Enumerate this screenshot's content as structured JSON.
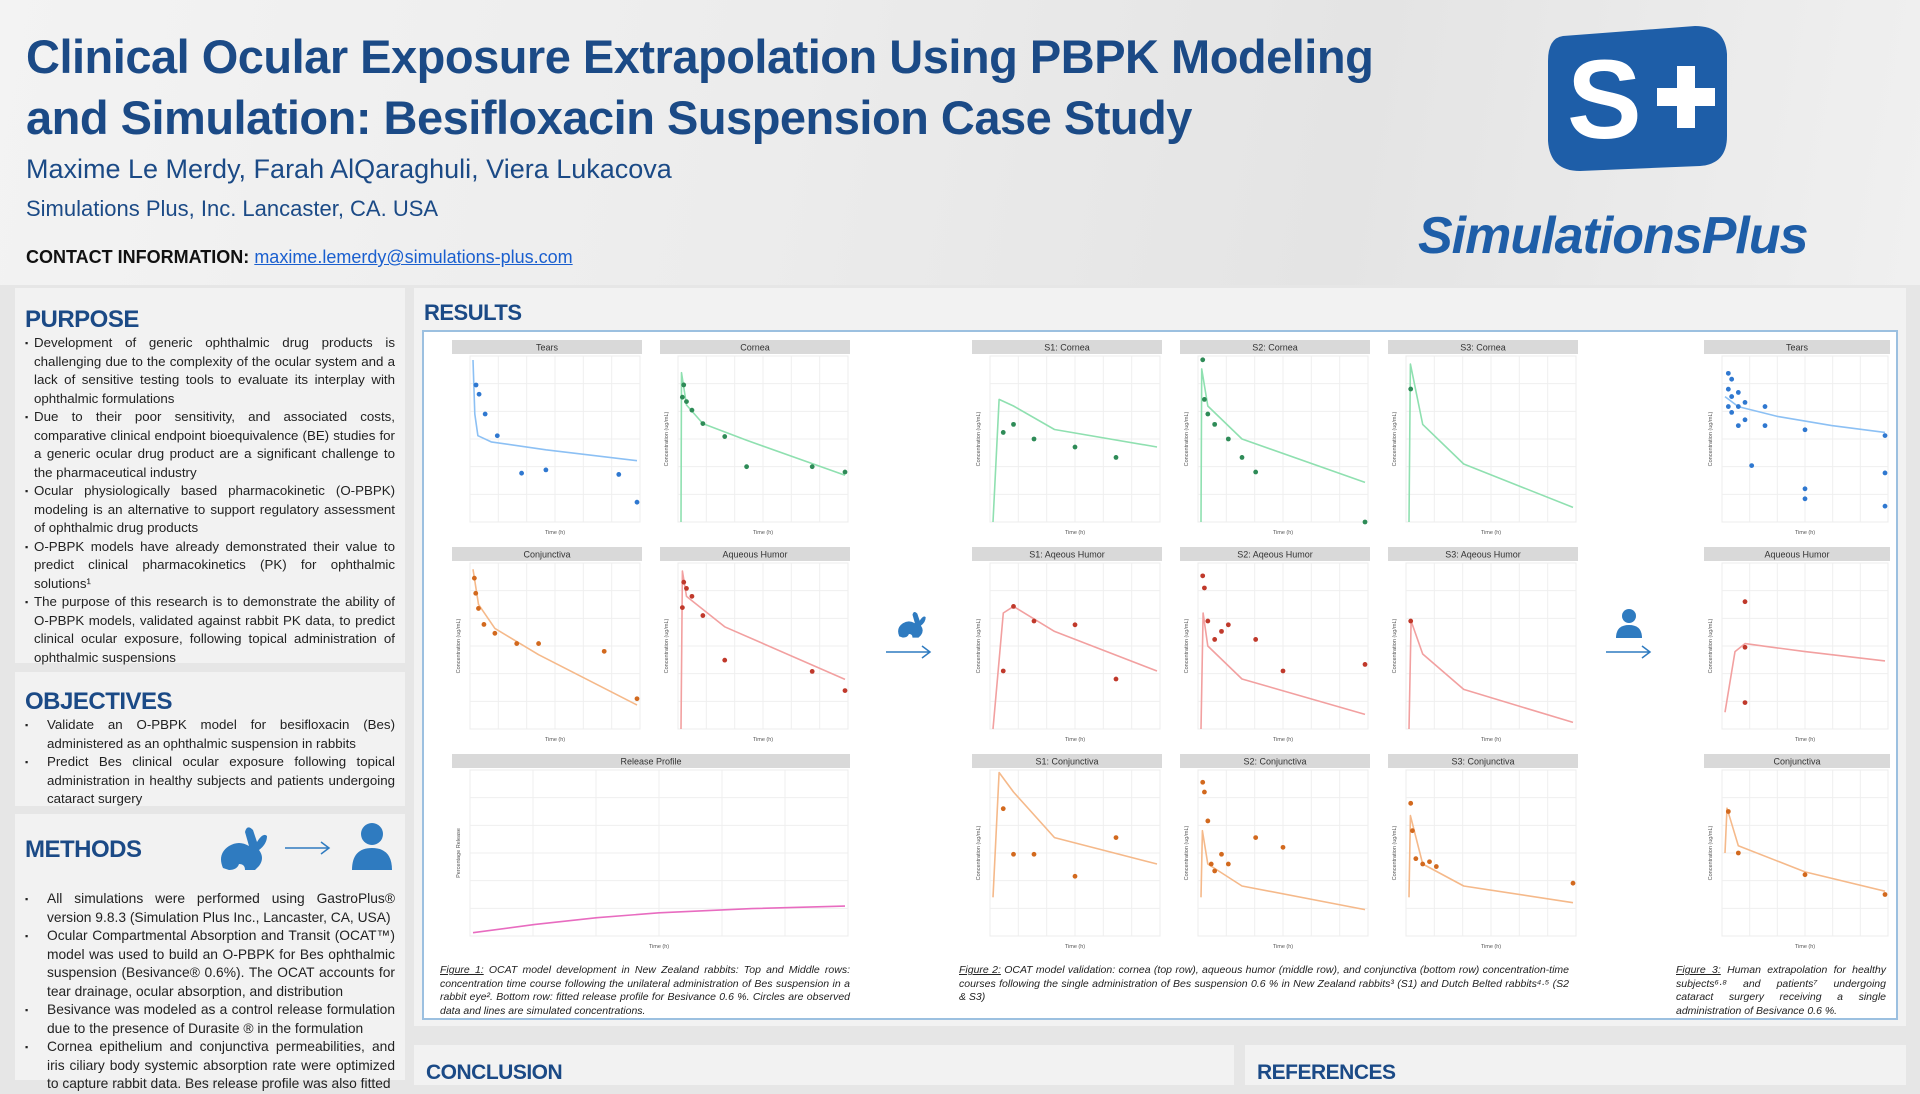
{
  "header": {
    "title": "Clinical Ocular Exposure Extrapolation Using PBPK Modeling and Simulation: Besifloxacin Suspension Case Study",
    "authors": "Maxime Le Merdy, Farah AlQaraghuli, Viera Lukacova",
    "affiliation": "Simulations Plus, Inc. Lancaster, CA. USA",
    "contact_label": "CONTACT INFORMATION:",
    "contact_email": "maxime.lemerdy@simulations-plus.com",
    "logo_text": "SimulationsPlus",
    "logo_mark": "S+"
  },
  "colors": {
    "brand_blue": "#1b4a86",
    "logo_blue": "#1e5ea8",
    "link": "#1a5fcf",
    "results_border": "#9cc0e0"
  },
  "purpose": {
    "heading": "PURPOSE",
    "items": [
      "Development of generic ophthalmic drug products is challenging due to the complexity of the ocular system and a lack of sensitive testing tools to evaluate its interplay with ophthalmic formulations",
      "Due to their poor sensitivity, and associated costs, comparative clinical endpoint bioequivalence (BE) studies for a generic ocular drug product are a significant challenge to the pharmaceutical industry",
      "Ocular physiologically based pharmacokinetic (O-PBPK) modeling is an alternative to support regulatory assessment of ophthalmic drug products",
      "O-PBPK models have already demonstrated their value to predict clinical pharmacokinetics (PK) for ophthalmic solutions¹",
      "The purpose of this research is to demonstrate the ability of O-PBPK models, validated against rabbit PK data, to predict clinical ocular exposure, following topical administration of ophthalmic suspensions"
    ]
  },
  "objectives": {
    "heading": "OBJECTIVES",
    "items": [
      "Validate an O-PBPK model for besifloxacin (Bes) administered as an ophthalmic suspension in rabbits",
      "Predict Bes clinical ocular exposure following topical administration in healthy subjects and patients undergoing cataract surgery"
    ]
  },
  "methods": {
    "heading": "METHODS",
    "icons": [
      "rabbit-icon",
      "arrow-right-icon",
      "person-icon"
    ],
    "items": [
      "All simulations were performed using GastroPlus® version 9.8.3 (Simulation Plus Inc., Lancaster, CA, USA)",
      "Ocular Compartmental Absorption and Transit (OCAT™) model was used to build an O-PBPK for Bes ophthalmic suspension (Besivance® 0.6%). The OCAT accounts for tear drainage, ocular absorption, and distribution",
      "Besivance was modeled as a control release formulation due to the presence of Durasite ® in the formulation",
      "Cornea epithelium and conjunctiva permeabilities, and iris ciliary body systemic absorption rate were optimized to capture rabbit data. Bes release profile was also fitted"
    ]
  },
  "results": {
    "heading": "RESULTS",
    "captions": {
      "fig1_label": "Figure 1:",
      "fig1_text": " OCAT model development in New Zealand rabbits: Top and Middle rows: concentration time course following the unilateral administration of Bes suspension in a rabbit eye². Bottom row: fitted release profile for Besivance 0.6 %. Circles are observed data and lines are simulated concentrations.",
      "fig2_label": "Figure 2:",
      "fig2_text": " OCAT model validation: cornea (top row), aqueous humor (middle row), and conjunctiva (bottom row) concentration-time courses following the single administration of Bes suspension 0.6 % in New Zealand rabbits³ (S1) and Dutch Belted rabbits⁴·⁵ (S2 & S3)",
      "fig3_label": "Figure 3:",
      "fig3_text": " Human extrapolation for healthy subjects⁶·⁸ and patients⁷ undergoing cataract surgery receiving a single administration of Besivance 0.6 %."
    }
  },
  "chart_data": [
    {
      "id": "f1-tears",
      "type": "line",
      "title": "Tears",
      "xlabel": "Time (h)",
      "ylabel": "",
      "yscale": "log",
      "xlim": [
        0,
        27
      ],
      "ylim": [
        1,
        10000
      ],
      "color": "#2f78d0",
      "line": "#8cc0f4",
      "observed": [
        [
          0.5,
          2000
        ],
        [
          1,
          1200
        ],
        [
          2,
          400
        ],
        [
          4,
          120
        ],
        [
          8,
          15
        ],
        [
          12,
          18
        ],
        [
          24,
          14
        ],
        [
          27,
          3
        ]
      ],
      "simulated": [
        [
          0,
          8000
        ],
        [
          0.3,
          400
        ],
        [
          0.8,
          120
        ],
        [
          3,
          85
        ],
        [
          12,
          55
        ],
        [
          27,
          30
        ]
      ]
    },
    {
      "id": "f1-cornea",
      "type": "line",
      "title": "Cornea",
      "xlabel": "Time (h)",
      "ylabel": "Concentration (ug/mL)",
      "yscale": "log",
      "xlim": [
        0,
        30
      ],
      "ylim": [
        0.01,
        10
      ],
      "color": "#2e8b57",
      "line": "#8fe0b0",
      "observed": [
        [
          0.5,
          3
        ],
        [
          0.25,
          1.8
        ],
        [
          1,
          1.5
        ],
        [
          2,
          1.05
        ],
        [
          4,
          0.6
        ],
        [
          8,
          0.35
        ],
        [
          12,
          0.1
        ],
        [
          24,
          0.1
        ],
        [
          30,
          0.08
        ]
      ],
      "simulated": [
        [
          0,
          0.01
        ],
        [
          0.1,
          5
        ],
        [
          1,
          1.3
        ],
        [
          4,
          0.6
        ],
        [
          12,
          0.3
        ],
        [
          30,
          0.07
        ]
      ]
    },
    {
      "id": "f1-conjunctiva",
      "type": "line",
      "title": "Conjunctiva",
      "xlabel": "Time (h)",
      "ylabel": "Concentration (ug/mL)",
      "yscale": "log",
      "xlim": [
        0,
        30
      ],
      "ylim": [
        0.01,
        20
      ],
      "color": "#d2691e",
      "line": "#f5b98a",
      "observed": [
        [
          0.25,
          10
        ],
        [
          0.5,
          5
        ],
        [
          1,
          2.5
        ],
        [
          2,
          1.2
        ],
        [
          4,
          0.8
        ],
        [
          8,
          0.5
        ],
        [
          12,
          0.5
        ],
        [
          24,
          0.35
        ],
        [
          30,
          0.04
        ]
      ],
      "simulated": [
        [
          0,
          15
        ],
        [
          1,
          3
        ],
        [
          4,
          1
        ],
        [
          12,
          0.3
        ],
        [
          30,
          0.03
        ]
      ]
    },
    {
      "id": "f1-aqueous",
      "type": "line",
      "title": "Aqueous Humor",
      "xlabel": "Time (h)",
      "ylabel": "Concentration (ug/mL)",
      "yscale": "log",
      "xlim": [
        0,
        30
      ],
      "ylim": [
        0.0005,
        0.2
      ],
      "color": "#c0392b",
      "line": "#f2a0a0",
      "observed": [
        [
          0.25,
          0.04
        ],
        [
          0.5,
          0.1
        ],
        [
          1,
          0.08
        ],
        [
          2,
          0.06
        ],
        [
          4,
          0.03
        ],
        [
          8,
          0.006
        ],
        [
          24,
          0.004
        ],
        [
          30,
          0.002
        ]
      ],
      "simulated": [
        [
          0,
          0.0005
        ],
        [
          0.25,
          0.15
        ],
        [
          1,
          0.06
        ],
        [
          8,
          0.02
        ],
        [
          30,
          0.003
        ]
      ]
    },
    {
      "id": "f1-release",
      "type": "line",
      "title": "Release Profile",
      "xlabel": "Time (h)",
      "ylabel": "Percentage Release",
      "yscale": "linear",
      "xlim": [
        0,
        24
      ],
      "ylim": [
        0,
        100
      ],
      "color": "#e040a0",
      "line": "#e86cc0",
      "observed": [],
      "simulated": [
        [
          0,
          2
        ],
        [
          4,
          7
        ],
        [
          8,
          11
        ],
        [
          12,
          14
        ],
        [
          18,
          16.5
        ],
        [
          24,
          18
        ]
      ]
    },
    {
      "id": "f2-s1-cornea",
      "type": "line",
      "title": "S1: Cornea",
      "xlabel": "Time (h)",
      "ylabel": "Concentration (ug/mL)",
      "yscale": "log",
      "xlim": [
        0,
        8
      ],
      "ylim": [
        0.1,
        10
      ],
      "color": "#2e8b57",
      "line": "#8fe0b0",
      "observed": [
        [
          0.5,
          1.2
        ],
        [
          1,
          1.5
        ],
        [
          2,
          1
        ],
        [
          4,
          0.8
        ],
        [
          6,
          0.6
        ]
      ],
      "simulated": [
        [
          0,
          0.1
        ],
        [
          0.3,
          3
        ],
        [
          1,
          2.5
        ],
        [
          3,
          1.3
        ],
        [
          8,
          0.8
        ]
      ]
    },
    {
      "id": "f2-s2-cornea",
      "type": "line",
      "title": "S2: Cornea",
      "xlabel": "Time (h)",
      "ylabel": "Concentration (ug/mL)",
      "yscale": "log",
      "xlim": [
        0,
        24
      ],
      "ylim": [
        0.1,
        10
      ],
      "color": "#2e8b57",
      "line": "#8fe0b0",
      "observed": [
        [
          0.25,
          9
        ],
        [
          0.5,
          3
        ],
        [
          1,
          2
        ],
        [
          2,
          1.5
        ],
        [
          4,
          1
        ],
        [
          6,
          0.6
        ],
        [
          8,
          0.4
        ],
        [
          24,
          0.1
        ]
      ],
      "simulated": [
        [
          0,
          0.1
        ],
        [
          0.1,
          7
        ],
        [
          1,
          2.5
        ],
        [
          6,
          1
        ],
        [
          24,
          0.3
        ]
      ]
    },
    {
      "id": "f2-s3-cornea",
      "type": "line",
      "title": "S3: Cornea",
      "xlabel": "Time (h)",
      "ylabel": "Concentration (ug/mL)",
      "yscale": "log",
      "xlim": [
        0,
        24
      ],
      "ylim": [
        0.1,
        10
      ],
      "color": "#2e8b57",
      "line": "#8fe0b0",
      "observed": [
        [
          0.25,
          4
        ]
      ],
      "simulated": [
        [
          0,
          0.1
        ],
        [
          0.2,
          8
        ],
        [
          2,
          1.5
        ],
        [
          8,
          0.5
        ],
        [
          24,
          0.15
        ]
      ]
    },
    {
      "id": "f2-s1-aqueous",
      "type": "line",
      "title": "S1: Aqeous Humor",
      "xlabel": "Time (h)",
      "ylabel": "Concentration (ug/mL)",
      "yscale": "log",
      "xlim": [
        0,
        8
      ],
      "ylim": [
        0.01,
        1
      ],
      "color": "#c0392b",
      "line": "#f2a0a0",
      "observed": [
        [
          0.5,
          0.05
        ],
        [
          1,
          0.3
        ],
        [
          2,
          0.2
        ],
        [
          4,
          0.18
        ],
        [
          6,
          0.04
        ]
      ],
      "simulated": [
        [
          0,
          0.01
        ],
        [
          0.5,
          0.25
        ],
        [
          1,
          0.3
        ],
        [
          3,
          0.15
        ],
        [
          8,
          0.05
        ]
      ]
    },
    {
      "id": "f2-s2-aqueous",
      "type": "line",
      "title": "S2: Aqeous Humor",
      "xlabel": "Time (h)",
      "ylabel": "Concentration (ug/mL)",
      "yscale": "log",
      "xlim": [
        0,
        24
      ],
      "ylim": [
        0.01,
        1
      ],
      "color": "#c0392b",
      "line": "#f2a0a0",
      "observed": [
        [
          0.25,
          0.7
        ],
        [
          0.5,
          0.5
        ],
        [
          1,
          0.2
        ],
        [
          2,
          0.12
        ],
        [
          3,
          0.15
        ],
        [
          4,
          0.18
        ],
        [
          8,
          0.12
        ],
        [
          12,
          0.05
        ],
        [
          24,
          0.06
        ]
      ],
      "simulated": [
        [
          0,
          0.01
        ],
        [
          0.3,
          0.25
        ],
        [
          1,
          0.1
        ],
        [
          6,
          0.04
        ],
        [
          24,
          0.015
        ]
      ]
    },
    {
      "id": "f2-s3-aqueous",
      "type": "line",
      "title": "S3: Aqeous Humor",
      "xlabel": "Time (h)",
      "ylabel": "Concentration (ug/mL)",
      "yscale": "log",
      "xlim": [
        0,
        24
      ],
      "ylim": [
        0.01,
        1
      ],
      "color": "#c0392b",
      "line": "#f2a0a0",
      "observed": [
        [
          0.25,
          0.2
        ]
      ],
      "simulated": [
        [
          0,
          0.01
        ],
        [
          0.3,
          0.2
        ],
        [
          2,
          0.08
        ],
        [
          8,
          0.03
        ],
        [
          24,
          0.012
        ]
      ]
    },
    {
      "id": "f2-s1-conjunctiva",
      "type": "line",
      "title": "S1: Conjunctiva",
      "xlabel": "Time (h)",
      "ylabel": "Concentration (ug/mL)",
      "yscale": "log",
      "xlim": [
        0,
        8
      ],
      "ylim": [
        0.1,
        100
      ],
      "color": "#d2691e",
      "line": "#f5b98a",
      "observed": [
        [
          0.5,
          20
        ],
        [
          1,
          3
        ],
        [
          2,
          3
        ],
        [
          4,
          1.2
        ],
        [
          6,
          6
        ]
      ],
      "simulated": [
        [
          0,
          0.5
        ],
        [
          0.3,
          90
        ],
        [
          1,
          40
        ],
        [
          3,
          6
        ],
        [
          8,
          2
        ]
      ]
    },
    {
      "id": "f2-s2-conjunctiva",
      "type": "line",
      "title": "S2: Conjunctiva",
      "xlabel": "Time (h)",
      "ylabel": "Concentration (ug/mL)",
      "yscale": "log",
      "xlim": [
        0,
        24
      ],
      "ylim": [
        0.1,
        100
      ],
      "color": "#d2691e",
      "line": "#f5b98a",
      "observed": [
        [
          0.25,
          60
        ],
        [
          0.5,
          40
        ],
        [
          1,
          12
        ],
        [
          1.5,
          2
        ],
        [
          2,
          1.5
        ],
        [
          3,
          3
        ],
        [
          4,
          2
        ],
        [
          8,
          6
        ],
        [
          12,
          4
        ]
      ],
      "simulated": [
        [
          0,
          0.5
        ],
        [
          0.2,
          8
        ],
        [
          1,
          2
        ],
        [
          6,
          0.8
        ],
        [
          24,
          0.3
        ]
      ]
    },
    {
      "id": "f2-s3-conjunctiva",
      "type": "line",
      "title": "S3: Conjunctiva",
      "xlabel": "Time (h)",
      "ylabel": "Concentration (ug/mL)",
      "yscale": "log",
      "xlim": [
        0,
        24
      ],
      "ylim": [
        0.1,
        100
      ],
      "color": "#d2691e",
      "line": "#f5b98a",
      "observed": [
        [
          0.25,
          25
        ],
        [
          0.5,
          8
        ],
        [
          1,
          2.5
        ],
        [
          2,
          2
        ],
        [
          3,
          2.2
        ],
        [
          4,
          1.8
        ],
        [
          24,
          0.9
        ]
      ],
      "simulated": [
        [
          0,
          0.5
        ],
        [
          0.2,
          15
        ],
        [
          2,
          2
        ],
        [
          8,
          0.8
        ],
        [
          24,
          0.4
        ]
      ]
    },
    {
      "id": "f3-tears",
      "type": "line",
      "title": "Tears",
      "xlabel": "Time (h)",
      "ylabel": "Concentration (ug/mL)",
      "yscale": "log",
      "xlim": [
        0,
        24
      ],
      "ylim": [
        0.01,
        1000
      ],
      "color": "#2f78d0",
      "line": "#8cc0f4",
      "observed": [
        [
          0.5,
          300
        ],
        [
          0.5,
          100
        ],
        [
          0.5,
          30
        ],
        [
          1,
          200
        ],
        [
          1,
          60
        ],
        [
          1,
          20
        ],
        [
          2,
          80
        ],
        [
          2,
          30
        ],
        [
          2,
          8
        ],
        [
          3,
          40
        ],
        [
          3,
          12
        ],
        [
          4,
          0.5
        ],
        [
          6,
          30
        ],
        [
          6,
          8
        ],
        [
          12,
          6
        ],
        [
          12,
          0.1
        ],
        [
          12,
          0.05
        ],
        [
          24,
          4
        ],
        [
          24,
          0.3
        ],
        [
          24,
          0.03
        ]
      ],
      "simulated": [
        [
          0,
          60
        ],
        [
          2,
          30
        ],
        [
          8,
          15
        ],
        [
          16,
          8
        ],
        [
          24,
          5
        ]
      ]
    },
    {
      "id": "f3-aqueous",
      "type": "line",
      "title": "Aqueous Humor",
      "xlabel": "Time (h)",
      "ylabel": "Concentration (ug/mL)",
      "yscale": "log",
      "xlim": [
        0,
        8
      ],
      "ylim": [
        0.01,
        10
      ],
      "color": "#c0392b",
      "line": "#f2a0a0",
      "observed": [
        [
          1,
          2
        ],
        [
          1,
          0.3
        ],
        [
          1,
          0.03
        ]
      ],
      "simulated": [
        [
          0,
          0.02
        ],
        [
          0.5,
          0.25
        ],
        [
          1,
          0.35
        ],
        [
          4,
          0.25
        ],
        [
          8,
          0.17
        ]
      ]
    },
    {
      "id": "f3-conjunctiva",
      "type": "line",
      "title": "Conjunctiva",
      "xlabel": "Time (h)",
      "ylabel": "Concentration (ug/mL)",
      "yscale": "log",
      "xlim": [
        0,
        24
      ],
      "ylim": [
        0.01,
        100
      ],
      "color": "#d2691e",
      "line": "#f5b98a",
      "observed": [
        [
          0.5,
          10
        ],
        [
          2,
          1
        ],
        [
          12,
          0.3
        ],
        [
          24,
          0.1
        ]
      ],
      "simulated": [
        [
          0,
          1
        ],
        [
          0.3,
          12
        ],
        [
          2,
          1.5
        ],
        [
          12,
          0.35
        ],
        [
          24,
          0.12
        ]
      ]
    }
  ],
  "conclusion": {
    "heading": "CONCLUSION"
  },
  "references": {
    "heading": "REFERENCES"
  }
}
